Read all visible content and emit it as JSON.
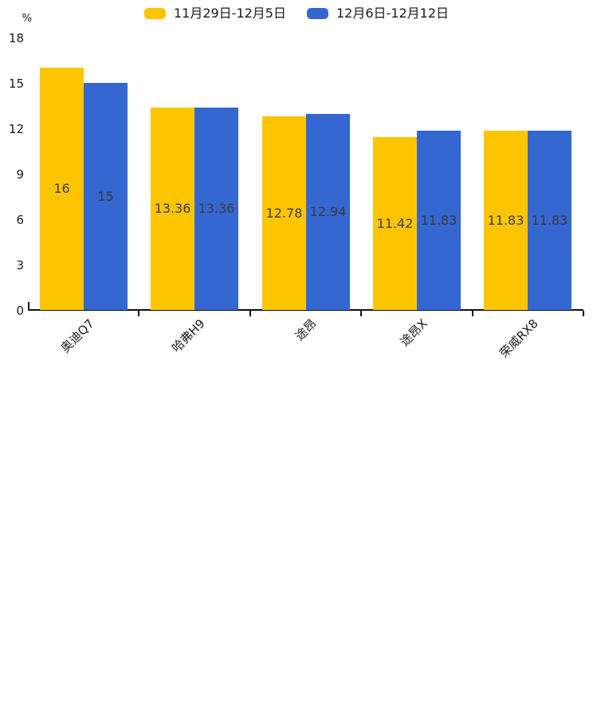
{
  "chart_data": {
    "type": "bar",
    "title": "",
    "unit_label": "%",
    "categories": [
      "奥迪Q7",
      "哈弗H9",
      "途昂",
      "途昂X",
      "荣威RX8"
    ],
    "series": [
      {
        "name": "11月29日-12月5日",
        "color": "#FDC500",
        "values": [
          16,
          13.36,
          12.78,
          11.42,
          11.83
        ],
        "value_labels": [
          "16",
          "13.36",
          "12.78",
          "11.42",
          "11.83"
        ]
      },
      {
        "name": "12月6日-12月12日",
        "color": "#3567D1",
        "values": [
          15,
          13.36,
          12.94,
          11.83,
          11.83
        ],
        "value_labels": [
          "15",
          "13.36",
          "12.94",
          "11.83",
          "11.83"
        ]
      }
    ],
    "ylim": [
      0,
      18
    ],
    "yticks": [
      0,
      3,
      6,
      9,
      12,
      15,
      18
    ],
    "legend_position": "top",
    "grid": false,
    "xtick_rotation_deg": 45,
    "bar_value_label_color": "#3b3b3b",
    "axis_color": "#111111",
    "text_color": "#1a1a1a"
  }
}
